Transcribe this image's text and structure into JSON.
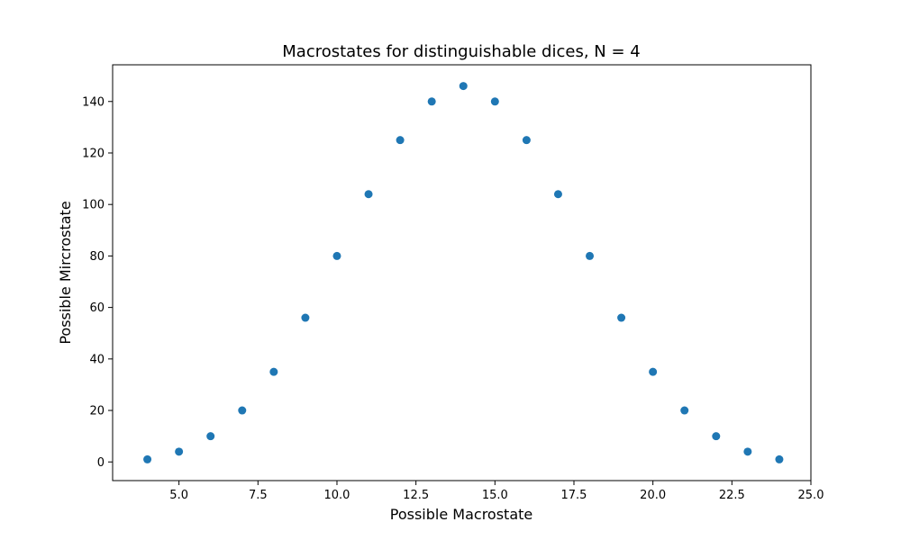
{
  "chart_data": {
    "type": "scatter",
    "title": "Macrostates for distinguishable dices, N = 4",
    "xlabel": "Possible Macrostate",
    "ylabel": "Possible Mircrostate",
    "x": [
      4,
      5,
      6,
      7,
      8,
      9,
      10,
      11,
      12,
      13,
      14,
      15,
      16,
      17,
      18,
      19,
      20,
      21,
      22,
      23,
      24
    ],
    "y": [
      1,
      4,
      10,
      20,
      35,
      56,
      80,
      104,
      125,
      140,
      146,
      140,
      125,
      104,
      80,
      56,
      35,
      20,
      10,
      4,
      1
    ],
    "xlim": [
      2.9,
      25.0
    ],
    "ylim": [
      -7.25,
      154.25
    ],
    "xticks": [
      5,
      7.5,
      10,
      12.5,
      15,
      17.5,
      20,
      22.5,
      25
    ],
    "xtick_labels": [
      "5.0",
      "7.5",
      "10.0",
      "12.5",
      "15.0",
      "17.5",
      "20.0",
      "22.5",
      "25.0"
    ],
    "yticks": [
      0,
      20,
      40,
      60,
      80,
      100,
      120,
      140
    ],
    "ytick_labels": [
      "0",
      "20",
      "40",
      "60",
      "80",
      "100",
      "120",
      "140"
    ],
    "grid": false,
    "marker_color": "#1f77b4"
  }
}
